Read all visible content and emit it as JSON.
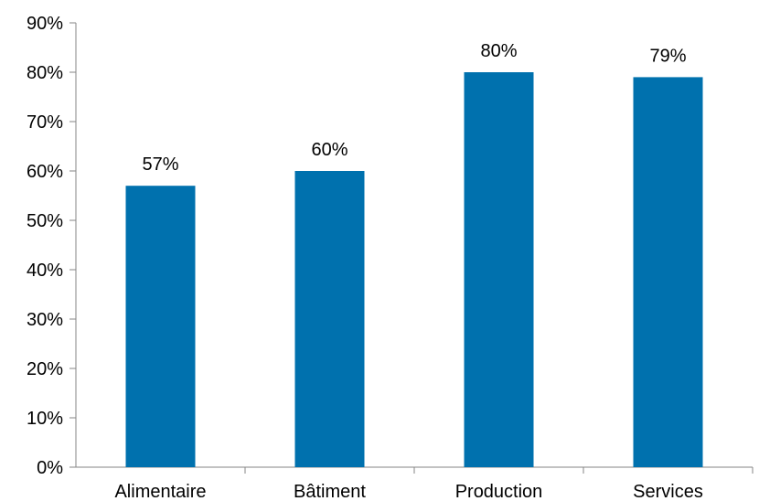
{
  "chart_data": {
    "type": "bar",
    "title": "",
    "xlabel": "",
    "ylabel": "",
    "categories": [
      "Alimentaire",
      "Bâtiment",
      "Production",
      "Services"
    ],
    "values": [
      57,
      60,
      80,
      79
    ],
    "data_labels": [
      "57%",
      "60%",
      "80%",
      "79%"
    ],
    "ylim": [
      0,
      90
    ],
    "yticks": [
      0,
      10,
      20,
      30,
      40,
      50,
      60,
      70,
      80,
      90
    ],
    "ytick_labels": [
      "0%",
      "10%",
      "20%",
      "30%",
      "40%",
      "50%",
      "60%",
      "70%",
      "80%",
      "90%"
    ],
    "grid": false,
    "legend": "none",
    "bar_color": "#0071AE",
    "axis_color": "#868686"
  }
}
